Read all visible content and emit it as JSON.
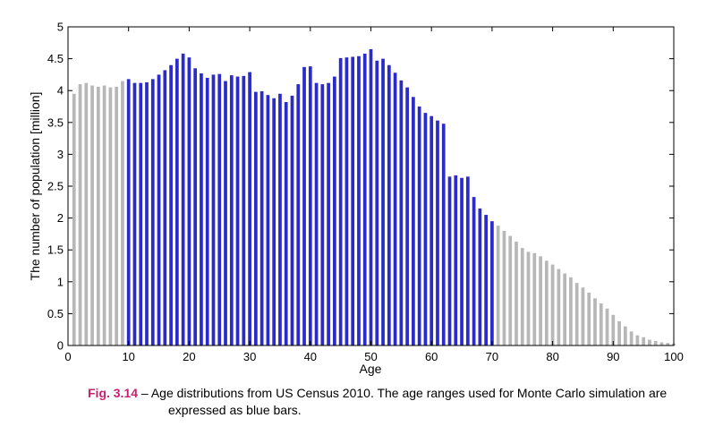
{
  "colors": {
    "simulated": "#2b2bc9",
    "excluded": "#b7b7b7",
    "caption_label": "#cc1f6f"
  },
  "chart_data": {
    "type": "bar",
    "xlabel": "Age",
    "ylabel": "The number of population [million]",
    "xlim": [
      0,
      100
    ],
    "ylim": [
      0,
      5
    ],
    "xticks": [
      "0",
      "10",
      "20",
      "30",
      "40",
      "50",
      "60",
      "70",
      "80",
      "90",
      "100"
    ],
    "yticks": [
      "0",
      "0.5",
      "1",
      "1.5",
      "2",
      "2.5",
      "3",
      "3.5",
      "4",
      "4.5",
      "5"
    ],
    "grid": false,
    "highlight_range": [
      10,
      70
    ],
    "series": [
      {
        "values": [
          3.95,
          4.1,
          4.12,
          4.08,
          4.06,
          4.08,
          4.05,
          4.06,
          4.15,
          4.18,
          4.12,
          4.12,
          4.13,
          4.18,
          4.25,
          4.32,
          4.4,
          4.5,
          4.58,
          4.52,
          4.35,
          4.27,
          4.2,
          4.25,
          4.26,
          4.15,
          4.24,
          4.22,
          4.23,
          4.29,
          3.98,
          3.99,
          3.93,
          3.88,
          3.95,
          3.82,
          3.92,
          4.1,
          4.37,
          4.38,
          4.12,
          4.1,
          4.12,
          4.22,
          4.51,
          4.52,
          4.53,
          4.54,
          4.58,
          4.65,
          4.47,
          4.5,
          4.4,
          4.28,
          4.16,
          4.05,
          3.9,
          3.75,
          3.65,
          3.6,
          3.53,
          3.48,
          2.65,
          2.67,
          2.63,
          2.65,
          2.33,
          2.15,
          2.05,
          1.95,
          1.88,
          1.8,
          1.72,
          1.63,
          1.53,
          1.47,
          1.45,
          1.4,
          1.33,
          1.27,
          1.2,
          1.13,
          1.07,
          0.98,
          0.91,
          0.83,
          0.74,
          0.66,
          0.58,
          0.48,
          0.38,
          0.3,
          0.22,
          0.16,
          0.13,
          0.09,
          0.07,
          0.05,
          0.04,
          0.03
        ]
      }
    ]
  },
  "caption": {
    "label": "Fig. 3.14",
    "line1": " – Age distributions from US Census 2010.  The age ranges used for Monte Carlo simulation are",
    "line2": "expressed as blue bars."
  }
}
